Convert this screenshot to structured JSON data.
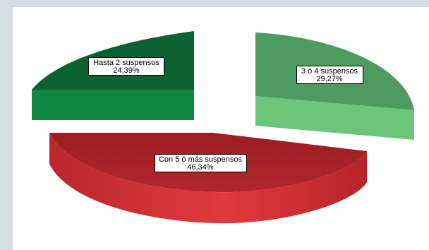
{
  "chart_data": {
    "type": "pie",
    "style": "3d-exploded",
    "title": "",
    "slices": [
      {
        "label": "Hasta 2 suspensos",
        "percent_text": "24,39%",
        "value": 24.39,
        "color": "#0f6b35"
      },
      {
        "label": "3 ó 4 suspensos",
        "percent_text": "29,27%",
        "value": 29.27,
        "color": "#4f9c62"
      },
      {
        "label": "Con 5 ó más suspensos",
        "percent_text": "46,34%",
        "value": 46.34,
        "color": "#a82226"
      }
    ]
  }
}
